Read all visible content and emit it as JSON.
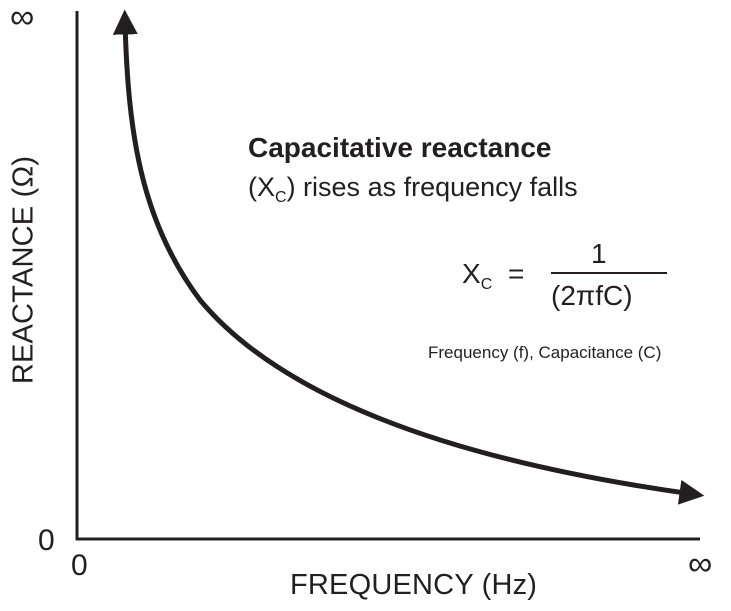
{
  "colors": {
    "ink": "#231f20",
    "background": "#ffffff"
  },
  "axes": {
    "y_title": "REACTANCE (Ω)",
    "x_title": "FREQUENCY (Hz)",
    "y_top_label": "∞",
    "y_bottom_label": "0",
    "x_left_label": "0",
    "x_right_label": "∞"
  },
  "annotation": {
    "heading": "Capacitative reactance",
    "line2_open": "(X",
    "line2_sub": "C",
    "line2_rest": ") rises as frequency falls"
  },
  "formula": {
    "lhs": "X",
    "lhs_sub": "C",
    "equals": "=",
    "numerator": "1",
    "denominator": "(2πfC)"
  },
  "legend_note": "Frequency (f), Capacitance (C)",
  "curve": {
    "shape": "reciprocal",
    "arrows": "both-ends"
  }
}
